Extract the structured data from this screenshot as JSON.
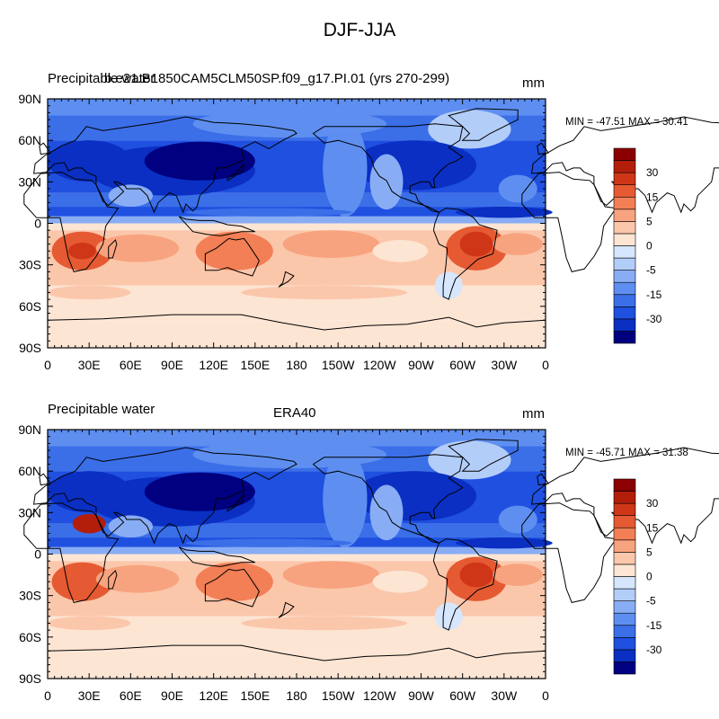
{
  "title": "DJF-JJA",
  "colors": {
    "levels": [
      "#000080",
      "#0a2fc2",
      "#1f50e0",
      "#3b6fe8",
      "#5e8ff0",
      "#88adf5",
      "#b3cdf9",
      "#d6e6fc",
      "#fde5d4",
      "#fbc7ab",
      "#f8a37f",
      "#f27f55",
      "#e55a32",
      "#cf3618",
      "#b31e0b",
      "#8b0000"
    ],
    "colorbar_labels": [
      "30",
      "15",
      "5",
      "0",
      "-5",
      "-15",
      "-30"
    ]
  },
  "axes": {
    "lat_labels": [
      "90N",
      "60N",
      "30N",
      "0",
      "30S",
      "60S",
      "90S"
    ],
    "lon_labels": [
      "0",
      "30E",
      "60E",
      "90E",
      "120E",
      "150E",
      "180",
      "150W",
      "120W",
      "90W",
      "60W",
      "30W",
      "0"
    ]
  },
  "panels": [
    {
      "left_label": "Precipitable water",
      "center_label": "b.e21.B1850CAM5CLM50SP.f09_g17.PI.01 (yrs 270-299)",
      "units": "mm",
      "minmax": "MIN = -47.51 MAX =  30.41"
    },
    {
      "left_label": "Precipitable water",
      "center_label": "ERA40",
      "units": "mm",
      "minmax": "MIN = -45.71 MAX =  31.38"
    }
  ]
}
